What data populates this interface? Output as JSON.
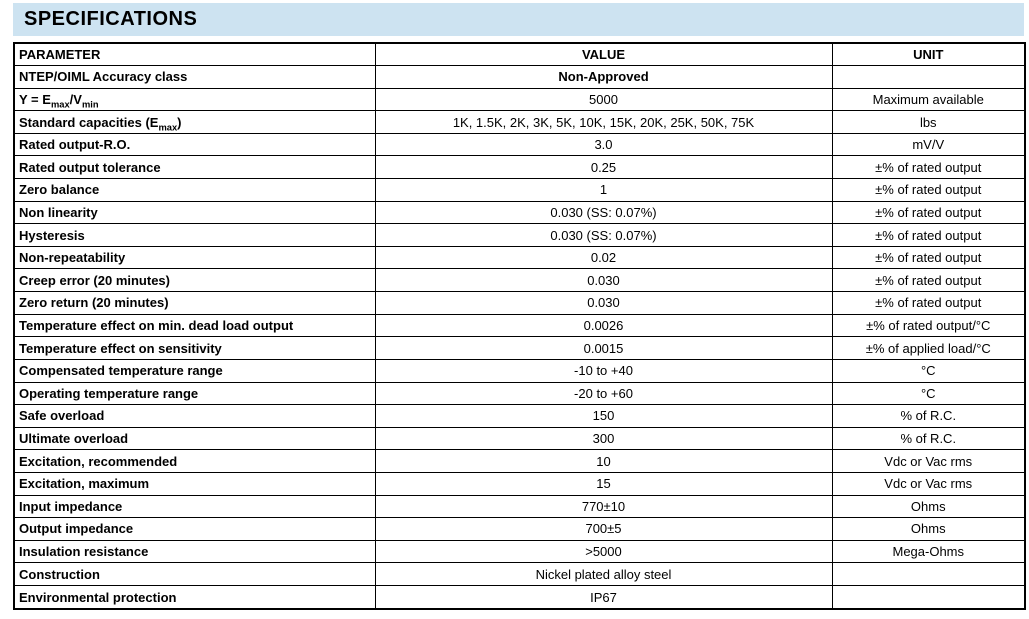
{
  "page": {
    "title": "SPECIFICATIONS"
  },
  "colors": {
    "title_band_background": "#cde3f1",
    "table_border": "#000000",
    "text": "#000000",
    "page_background": "#ffffff"
  },
  "table": {
    "headers": [
      "PARAMETER",
      "VALUE",
      "UNIT"
    ],
    "rows": [
      {
        "param": "NTEP/OIML Accuracy class",
        "value": "Non-Approved",
        "unit": "",
        "value_bold": true
      },
      {
        "param": "Y = E[sub]max[/sub]/V[sub]min[/sub]",
        "value": "5000",
        "unit": "Maximum available"
      },
      {
        "param": "Standard capacities (E[sub]max[/sub])",
        "value": "1K, 1.5K, 2K, 3K, 5K, 10K, 15K, 20K, 25K, 50K, 75K",
        "unit": "lbs"
      },
      {
        "param": "Rated output-R.O.",
        "value": "3.0",
        "unit": "mV/V"
      },
      {
        "param": "Rated output tolerance",
        "value": "0.25",
        "unit": "±% of rated output"
      },
      {
        "param": "Zero balance",
        "value": "1",
        "unit": "±% of rated output"
      },
      {
        "param": "Non linearity",
        "value": "0.030 (SS: 0.07%)",
        "unit": "±% of rated output"
      },
      {
        "param": "Hysteresis",
        "value": "0.030 (SS: 0.07%)",
        "unit": "±% of rated output"
      },
      {
        "param": "Non-repeatability",
        "value": "0.02",
        "unit": "±% of rated output"
      },
      {
        "param": "Creep error (20 minutes)",
        "value": "0.030",
        "unit": "±% of rated output"
      },
      {
        "param": "Zero return (20 minutes)",
        "value": "0.030",
        "unit": "±% of rated output"
      },
      {
        "param": "Temperature effect on min. dead load output",
        "value": "0.0026",
        "unit": "±% of rated output/°C"
      },
      {
        "param": "Temperature effect on sensitivity",
        "value": "0.0015",
        "unit": "±% of applied load/°C"
      },
      {
        "param": "Compensated temperature range",
        "value": "-10 to +40",
        "unit": "°C"
      },
      {
        "param": "Operating temperature range",
        "value": "-20 to +60",
        "unit": "°C"
      },
      {
        "param": "Safe overload",
        "value": "150",
        "unit": "% of R.C."
      },
      {
        "param": "Ultimate overload",
        "value": "300",
        "unit": "% of R.C."
      },
      {
        "param": "Excitation, recommended",
        "value": "10",
        "unit": "Vdc or Vac rms"
      },
      {
        "param": "Excitation, maximum",
        "value": "15",
        "unit": "Vdc or Vac rms"
      },
      {
        "param": "Input impedance",
        "value": "770±10",
        "unit": "Ohms"
      },
      {
        "param": "Output impedance",
        "value": "700±5",
        "unit": "Ohms"
      },
      {
        "param": "Insulation resistance",
        "value": ">5000",
        "unit": "Mega-Ohms"
      },
      {
        "param": "Construction",
        "value": "Nickel plated alloy steel",
        "unit": ""
      },
      {
        "param": "Environmental protection",
        "value": "IP67",
        "unit": ""
      }
    ]
  }
}
